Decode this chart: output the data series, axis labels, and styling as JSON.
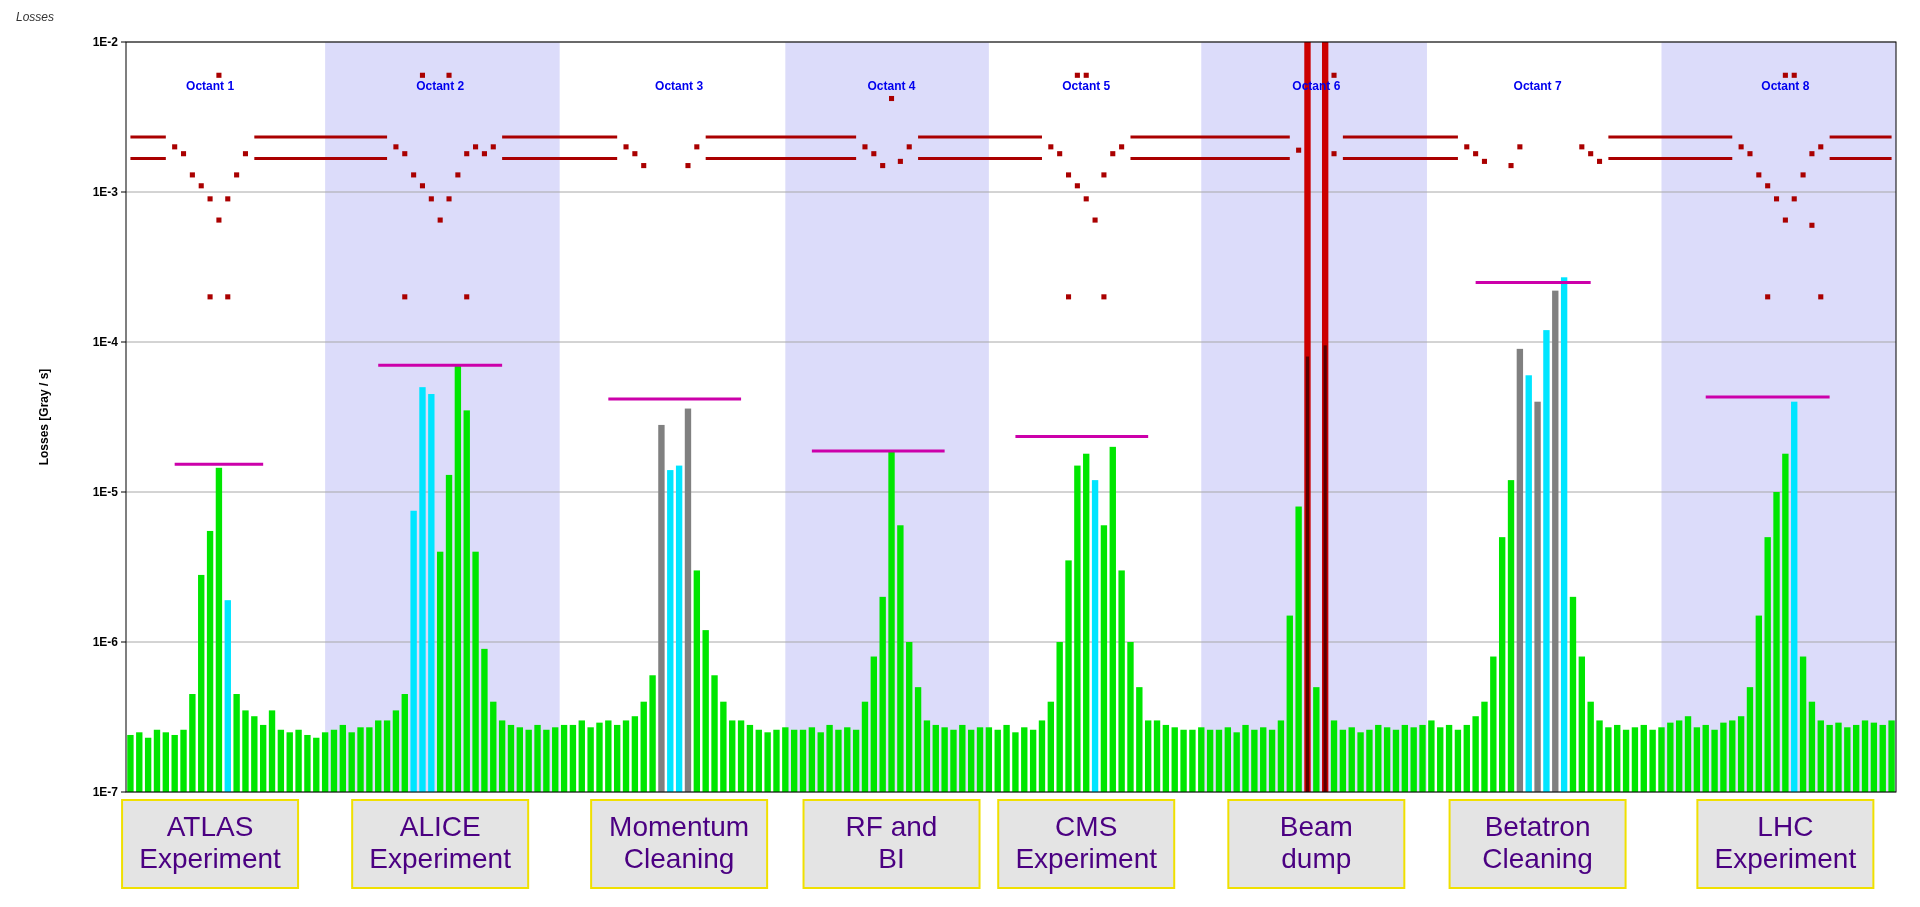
{
  "chart_data": {
    "type": "bar",
    "title": "Losses",
    "ylabel": "Losses [Gray / s]",
    "log": "y",
    "grid": "y",
    "line_style": "solid",
    "ylim": [
      1e-07,
      0.01
    ],
    "yticks": [
      {
        "value": 1e-07,
        "label": "1E-7"
      },
      {
        "value": 1e-06,
        "label": "1E-6"
      },
      {
        "value": 1e-05,
        "label": "1E-5"
      },
      {
        "value": 0.0001,
        "label": "1E-4"
      },
      {
        "value": 0.001,
        "label": "1E-3"
      },
      {
        "value": 0.01,
        "label": "1E-2"
      }
    ],
    "categories": [
      null,
      null,
      null,
      null,
      null,
      null,
      null,
      null,
      null,
      "Octant 1",
      null,
      null,
      null,
      null,
      null,
      null,
      null,
      null,
      null,
      null,
      null,
      null,
      null,
      null,
      null,
      null,
      null,
      null,
      null,
      null,
      null,
      null,
      null,
      null,
      null,
      "Octant 2",
      null,
      null,
      null,
      null,
      null,
      null,
      null,
      null,
      null,
      null,
      null,
      null,
      null,
      null,
      null,
      null,
      null,
      null,
      null,
      null,
      null,
      null,
      null,
      null,
      null,
      null,
      "Octant 3",
      null,
      null,
      null,
      null,
      null,
      null,
      null,
      null,
      null,
      null,
      null,
      null,
      null,
      null,
      null,
      null,
      null,
      null,
      null,
      null,
      null,
      null,
      null,
      "Octant 4",
      null,
      null,
      null,
      null,
      null,
      null,
      null,
      null,
      null,
      null,
      null,
      null,
      null,
      null,
      null,
      null,
      null,
      null,
      null,
      null,
      null,
      "Octant 5",
      null,
      null,
      null,
      null,
      null,
      null,
      null,
      null,
      null,
      null,
      null,
      null,
      null,
      null,
      null,
      null,
      null,
      null,
      null,
      null,
      null,
      null,
      null,
      null,
      null,
      "Octant 6",
      null,
      null,
      null,
      null,
      null,
      null,
      null,
      null,
      null,
      null,
      null,
      null,
      null,
      null,
      null,
      null,
      null,
      null,
      null,
      null,
      null,
      null,
      null,
      null,
      "Octant 7",
      null,
      null,
      null,
      null,
      null,
      null,
      null,
      null,
      null,
      null,
      null,
      null,
      null,
      null,
      null,
      null,
      null,
      null,
      null,
      null,
      null,
      null,
      null,
      null,
      null,
      null,
      null,
      "Octant 8",
      null,
      null,
      null,
      null,
      null,
      null,
      null,
      null,
      null,
      null,
      null,
      null
    ],
    "series": [
      {
        "color": "#00e600",
        "values": [
          2.4e-07,
          2.5e-07,
          2.3e-07,
          2.6e-07,
          2.5e-07,
          2.4e-07,
          2.6e-07,
          4.5e-07,
          2.8e-06,
          5.5e-06,
          1.45e-05,
          null,
          4.5e-07,
          3.5e-07,
          3.2e-07,
          2.8e-07,
          3.5e-07,
          2.6e-07,
          2.5e-07,
          2.6e-07,
          2.4e-07,
          2.3e-07,
          2.5e-07,
          2.6e-07,
          2.8e-07,
          2.5e-07,
          2.7e-07,
          2.7e-07,
          3e-07,
          3e-07,
          3.5e-07,
          4.5e-07,
          null,
          null,
          null,
          4e-06,
          1.3e-05,
          7e-05,
          3.5e-05,
          4e-06,
          9e-07,
          4e-07,
          3e-07,
          2.8e-07,
          2.7e-07,
          2.6e-07,
          2.8e-07,
          2.6e-07,
          2.7e-07,
          2.8e-07,
          2.8e-07,
          3e-07,
          2.7e-07,
          2.9e-07,
          3e-07,
          2.8e-07,
          3e-07,
          3.2e-07,
          4e-07,
          6e-07,
          null,
          null,
          null,
          null,
          3e-06,
          1.2e-06,
          6e-07,
          4e-07,
          3e-07,
          3e-07,
          2.8e-07,
          2.6e-07,
          2.5e-07,
          2.6e-07,
          2.7e-07,
          2.6e-07,
          2.6e-07,
          2.7e-07,
          2.5e-07,
          2.8e-07,
          2.6e-07,
          2.7e-07,
          2.6e-07,
          4e-07,
          8e-07,
          2e-06,
          1.9e-05,
          6e-06,
          1e-06,
          5e-07,
          3e-07,
          2.8e-07,
          2.7e-07,
          2.6e-07,
          2.8e-07,
          2.6e-07,
          2.7e-07,
          2.7e-07,
          2.6e-07,
          2.8e-07,
          2.5e-07,
          2.7e-07,
          2.6e-07,
          3e-07,
          4e-07,
          1e-06,
          3.5e-06,
          1.5e-05,
          1.8e-05,
          null,
          6e-06,
          2e-05,
          3e-06,
          1e-06,
          5e-07,
          3e-07,
          3e-07,
          2.8e-07,
          2.7e-07,
          2.6e-07,
          2.6e-07,
          2.7e-07,
          2.6e-07,
          2.6e-07,
          2.7e-07,
          2.5e-07,
          2.8e-07,
          2.6e-07,
          2.7e-07,
          2.6e-07,
          3e-07,
          1.5e-06,
          8e-06,
          null,
          5e-07,
          null,
          3e-07,
          2.6e-07,
          2.7e-07,
          2.5e-07,
          2.6e-07,
          2.8e-07,
          2.7e-07,
          2.6e-07,
          2.8e-07,
          2.7e-07,
          2.8e-07,
          3e-07,
          2.7e-07,
          2.8e-07,
          2.6e-07,
          2.8e-07,
          3.2e-07,
          4e-07,
          8e-07,
          5e-06,
          1.2e-05,
          null,
          null,
          null,
          null,
          null,
          null,
          2e-06,
          8e-07,
          4e-07,
          3e-07,
          2.7e-07,
          2.8e-07,
          2.6e-07,
          2.7e-07,
          2.8e-07,
          2.6e-07,
          2.7e-07,
          2.9e-07,
          3e-07,
          3.2e-07,
          2.7e-07,
          2.8e-07,
          2.6e-07,
          2.9e-07,
          3e-07,
          3.2e-07,
          5e-07,
          1.5e-06,
          5e-06,
          1e-05,
          1.8e-05,
          null,
          8e-07,
          4e-07,
          3e-07,
          2.8e-07,
          2.9e-07,
          2.7e-07,
          2.8e-07,
          3e-07,
          2.9e-07,
          2.8e-07,
          3e-07
        ]
      },
      {
        "type": "bar",
        "color": "#00e5ff",
        "values": [
          null,
          null,
          null,
          null,
          null,
          null,
          null,
          null,
          null,
          null,
          null,
          1.9e-06,
          null,
          null,
          null,
          null,
          null,
          null,
          null,
          null,
          null,
          null,
          null,
          null,
          null,
          null,
          null,
          null,
          null,
          null,
          null,
          null,
          7.5e-06,
          5e-05,
          4.5e-05,
          null,
          null,
          null,
          null,
          null,
          null,
          null,
          null,
          null,
          null,
          null,
          null,
          null,
          null,
          null,
          null,
          null,
          null,
          null,
          null,
          null,
          null,
          null,
          null,
          null,
          null,
          1.4e-05,
          1.5e-05,
          null,
          null,
          null,
          null,
          null,
          null,
          null,
          null,
          null,
          null,
          null,
          null,
          null,
          null,
          null,
          null,
          null,
          null,
          null,
          null,
          null,
          null,
          null,
          null,
          null,
          null,
          null,
          null,
          null,
          null,
          null,
          null,
          null,
          null,
          null,
          null,
          null,
          null,
          null,
          null,
          null,
          null,
          null,
          null,
          null,
          null,
          1.2e-05,
          null,
          null,
          null,
          null,
          null,
          null,
          null,
          null,
          null,
          null,
          null,
          null,
          null,
          null,
          null,
          null,
          null,
          null,
          null,
          null,
          null,
          null,
          null,
          null,
          null,
          null,
          null,
          null,
          null,
          null,
          null,
          null,
          null,
          null,
          null,
          null,
          null,
          null,
          null,
          null,
          null,
          null,
          null,
          null,
          null,
          null,
          null,
          null,
          6e-05,
          null,
          0.00012,
          null,
          0.00027,
          null,
          null,
          null,
          null,
          null,
          null,
          null,
          null,
          null,
          null,
          null,
          null,
          null,
          null,
          null,
          null,
          null,
          null,
          null,
          null,
          null,
          null,
          null,
          null,
          null,
          4e-05,
          null,
          null,
          null,
          null,
          null,
          null,
          null,
          null,
          null,
          null,
          null
        ]
      },
      {
        "type": "bar",
        "color": "#808080",
        "values": [
          null,
          null,
          null,
          null,
          null,
          null,
          null,
          null,
          null,
          null,
          null,
          null,
          null,
          null,
          null,
          null,
          null,
          null,
          null,
          null,
          null,
          null,
          null,
          null,
          null,
          null,
          null,
          null,
          null,
          null,
          null,
          null,
          null,
          null,
          null,
          null,
          null,
          null,
          null,
          null,
          null,
          null,
          null,
          null,
          null,
          null,
          null,
          null,
          null,
          null,
          null,
          null,
          null,
          null,
          null,
          null,
          null,
          null,
          null,
          null,
          2.8e-05,
          null,
          null,
          3.6e-05,
          null,
          null,
          null,
          null,
          null,
          null,
          null,
          null,
          null,
          null,
          null,
          null,
          null,
          null,
          null,
          null,
          null,
          null,
          null,
          null,
          null,
          null,
          null,
          null,
          null,
          null,
          null,
          null,
          null,
          null,
          null,
          null,
          null,
          null,
          null,
          null,
          null,
          null,
          null,
          null,
          null,
          null,
          null,
          null,
          null,
          null,
          null,
          null,
          null,
          null,
          null,
          null,
          null,
          null,
          null,
          null,
          null,
          null,
          null,
          null,
          null,
          null,
          null,
          null,
          null,
          null,
          null,
          null,
          null,
          null,
          null,
          null,
          null,
          null,
          null,
          null,
          null,
          null,
          null,
          null,
          null,
          null,
          null,
          null,
          null,
          null,
          null,
          null,
          null,
          null,
          null,
          null,
          null,
          9e-05,
          null,
          4e-05,
          null,
          0.00022,
          null,
          null,
          null,
          null,
          null,
          null,
          null,
          null,
          null,
          null,
          null,
          null,
          null,
          null,
          null,
          null,
          null,
          null,
          null,
          null,
          null,
          null,
          null,
          null,
          null,
          null,
          null,
          null,
          null,
          null,
          null,
          null,
          null,
          null,
          null,
          null,
          null,
          null
        ]
      },
      {
        "type": "bar",
        "color": "#cc0000",
        "values": [
          null,
          null,
          null,
          null,
          null,
          null,
          null,
          null,
          null,
          null,
          null,
          null,
          null,
          null,
          null,
          null,
          null,
          null,
          null,
          null,
          null,
          null,
          null,
          null,
          null,
          null,
          null,
          null,
          null,
          null,
          null,
          null,
          null,
          null,
          null,
          null,
          null,
          null,
          null,
          null,
          null,
          null,
          null,
          null,
          null,
          null,
          null,
          null,
          null,
          null,
          null,
          null,
          null,
          null,
          null,
          null,
          null,
          null,
          null,
          null,
          null,
          null,
          null,
          null,
          null,
          null,
          null,
          null,
          null,
          null,
          null,
          null,
          null,
          null,
          null,
          null,
          null,
          null,
          null,
          null,
          null,
          null,
          null,
          null,
          null,
          null,
          null,
          null,
          null,
          null,
          null,
          null,
          null,
          null,
          null,
          null,
          null,
          null,
          null,
          null,
          null,
          null,
          null,
          null,
          null,
          null,
          null,
          null,
          null,
          null,
          null,
          null,
          null,
          null,
          null,
          null,
          null,
          null,
          null,
          null,
          null,
          null,
          null,
          null,
          null,
          null,
          null,
          null,
          null,
          null,
          null,
          null,
          null,
          0.01,
          null,
          0.01,
          null,
          null,
          null,
          null,
          null,
          null,
          null,
          null,
          null,
          null,
          null,
          null,
          null,
          null,
          null,
          null,
          null,
          null,
          null,
          null,
          null,
          null,
          null,
          null,
          null,
          null,
          null,
          null,
          null,
          null,
          null,
          null,
          null,
          null,
          null,
          null,
          null,
          null,
          null,
          null,
          null,
          null,
          null,
          null,
          null,
          null,
          null,
          null,
          null,
          null,
          null,
          null,
          null,
          null,
          null,
          null,
          null,
          null,
          null,
          null,
          null,
          null,
          null,
          null
        ]
      },
      {
        "type": "bar",
        "color": "#5a0000",
        "values": [
          null,
          null,
          null,
          null,
          null,
          null,
          null,
          null,
          null,
          null,
          null,
          null,
          null,
          null,
          null,
          null,
          null,
          null,
          null,
          null,
          null,
          null,
          null,
          null,
          null,
          null,
          null,
          null,
          null,
          null,
          null,
          null,
          null,
          null,
          null,
          null,
          null,
          null,
          null,
          null,
          null,
          null,
          null,
          null,
          null,
          null,
          null,
          null,
          null,
          null,
          null,
          null,
          null,
          null,
          null,
          null,
          null,
          null,
          null,
          null,
          null,
          null,
          null,
          null,
          null,
          null,
          null,
          null,
          null,
          null,
          null,
          null,
          null,
          null,
          null,
          null,
          null,
          null,
          null,
          null,
          null,
          null,
          null,
          null,
          null,
          null,
          null,
          null,
          null,
          null,
          null,
          null,
          null,
          null,
          null,
          null,
          null,
          null,
          null,
          null,
          null,
          null,
          null,
          null,
          null,
          null,
          null,
          null,
          null,
          null,
          null,
          null,
          null,
          null,
          null,
          null,
          null,
          null,
          null,
          null,
          null,
          null,
          null,
          null,
          null,
          null,
          null,
          null,
          null,
          null,
          null,
          null,
          null,
          8e-05,
          null,
          9.5e-05,
          null,
          null,
          null,
          null,
          null,
          null,
          null,
          null,
          null,
          null,
          null,
          null,
          null,
          null,
          null,
          null,
          null,
          null,
          null,
          null,
          null,
          null,
          null,
          null,
          null,
          null,
          null,
          null,
          null,
          null,
          null,
          null,
          null,
          null,
          null,
          null,
          null,
          null,
          null,
          null,
          null,
          null,
          null,
          null,
          null,
          null,
          null,
          null,
          null,
          null,
          null,
          null,
          null,
          null,
          null,
          null,
          null,
          null,
          null,
          null,
          null,
          null,
          null,
          null
        ]
      },
      {
        "type": "line",
        "color": "#aa0000",
        "values": [
          0.00233,
          0.00233,
          0.00233,
          0.00233,
          0.00233,
          null,
          null,
          null,
          null,
          null,
          null,
          null,
          null,
          null,
          0.00233,
          0.00233,
          0.00233,
          0.00233,
          0.00233,
          0.00233,
          0.00233,
          0.00233,
          0.00233,
          0.00233,
          0.00233,
          0.00233,
          0.00233,
          0.00233,
          0.00233,
          0.00233,
          null,
          null,
          null,
          null,
          null,
          null,
          null,
          null,
          null,
          null,
          null,
          null,
          0.00233,
          0.00233,
          0.00233,
          0.00233,
          0.00233,
          0.00233,
          0.00233,
          0.00233,
          0.00233,
          0.00233,
          0.00233,
          0.00233,
          0.00233,
          0.00233,
          null,
          null,
          null,
          null,
          null,
          null,
          null,
          null,
          null,
          0.00233,
          0.00233,
          0.00233,
          0.00233,
          0.00233,
          0.00233,
          0.00233,
          0.00233,
          0.00233,
          0.00233,
          0.00233,
          0.00233,
          0.00233,
          0.00233,
          0.00233,
          0.00233,
          0.00233,
          0.00233,
          null,
          null,
          null,
          null,
          null,
          null,
          0.00233,
          0.00233,
          0.00233,
          0.00233,
          0.00233,
          0.00233,
          0.00233,
          0.00233,
          0.00233,
          0.00233,
          0.00233,
          0.00233,
          0.00233,
          0.00233,
          0.00233,
          null,
          null,
          null,
          null,
          null,
          null,
          null,
          null,
          null,
          0.00233,
          0.00233,
          0.00233,
          0.00233,
          0.00233,
          0.00233,
          0.00233,
          0.00233,
          0.00233,
          0.00233,
          0.00233,
          0.00233,
          0.00233,
          0.00233,
          0.00233,
          0.00233,
          0.00233,
          0.00233,
          0.00233,
          null,
          null,
          null,
          null,
          null,
          0.00233,
          0.00233,
          0.00233,
          0.00233,
          0.00233,
          0.00233,
          0.00233,
          0.00233,
          0.00233,
          0.00233,
          0.00233,
          0.00233,
          0.00233,
          0.00233,
          null,
          null,
          null,
          null,
          null,
          null,
          null,
          null,
          null,
          null,
          null,
          null,
          null,
          null,
          null,
          null,
          0.00233,
          0.00233,
          0.00233,
          0.00233,
          0.00233,
          0.00233,
          0.00233,
          0.00233,
          0.00233,
          0.00233,
          0.00233,
          0.00233,
          0.00233,
          0.00233,
          0.00233,
          null,
          null,
          null,
          null,
          null,
          null,
          null,
          null,
          null,
          null,
          0.00233,
          0.00233,
          0.00233,
          0.00233,
          0.00233,
          0.00233,
          0.00233,
          0.00233
        ]
      },
      {
        "type": "line",
        "color": "#aa0000",
        "values": [
          0.00167,
          0.00167,
          0.00167,
          0.00167,
          0.00167,
          null,
          null,
          null,
          null,
          null,
          null,
          null,
          null,
          null,
          0.00167,
          0.00167,
          0.00167,
          0.00167,
          0.00167,
          0.00167,
          0.00167,
          0.00167,
          0.00167,
          0.00167,
          0.00167,
          0.00167,
          0.00167,
          0.00167,
          0.00167,
          0.00167,
          null,
          null,
          null,
          null,
          null,
          null,
          null,
          null,
          null,
          null,
          null,
          null,
          0.00167,
          0.00167,
          0.00167,
          0.00167,
          0.00167,
          0.00167,
          0.00167,
          0.00167,
          0.00167,
          0.00167,
          0.00167,
          0.00167,
          0.00167,
          0.00167,
          null,
          null,
          null,
          null,
          null,
          null,
          null,
          null,
          null,
          0.00167,
          0.00167,
          0.00167,
          0.00167,
          0.00167,
          0.00167,
          0.00167,
          0.00167,
          0.00167,
          0.00167,
          0.00167,
          0.00167,
          0.00167,
          0.00167,
          0.00167,
          0.00167,
          0.00167,
          0.00167,
          null,
          null,
          null,
          null,
          null,
          null,
          0.00167,
          0.00167,
          0.00167,
          0.00167,
          0.00167,
          0.00167,
          0.00167,
          0.00167,
          0.00167,
          0.00167,
          0.00167,
          0.00167,
          0.00167,
          0.00167,
          0.00167,
          null,
          null,
          null,
          null,
          null,
          null,
          null,
          null,
          null,
          0.00167,
          0.00167,
          0.00167,
          0.00167,
          0.00167,
          0.00167,
          0.00167,
          0.00167,
          0.00167,
          0.00167,
          0.00167,
          0.00167,
          0.00167,
          0.00167,
          0.00167,
          0.00167,
          0.00167,
          0.00167,
          0.00167,
          null,
          null,
          null,
          null,
          null,
          0.00167,
          0.00167,
          0.00167,
          0.00167,
          0.00167,
          0.00167,
          0.00167,
          0.00167,
          0.00167,
          0.00167,
          0.00167,
          0.00167,
          0.00167,
          0.00167,
          null,
          null,
          null,
          null,
          null,
          null,
          null,
          null,
          null,
          null,
          null,
          null,
          null,
          null,
          null,
          null,
          0.00167,
          0.00167,
          0.00167,
          0.00167,
          0.00167,
          0.00167,
          0.00167,
          0.00167,
          0.00167,
          0.00167,
          0.00167,
          0.00167,
          0.00167,
          0.00167,
          0.00167,
          null,
          null,
          null,
          null,
          null,
          null,
          null,
          null,
          null,
          null,
          0.00167,
          0.00167,
          0.00167,
          0.00167,
          0.00167,
          0.00167,
          0.00167,
          0.00167
        ]
      },
      {
        "type": "scatter",
        "marker": "square",
        "color": "#aa0000",
        "values": [
          null,
          null,
          null,
          null,
          null,
          0.002,
          0.0018,
          0.0013,
          0.0011,
          0.0009,
          0.00065,
          0.0009,
          0.0013,
          0.0018,
          null,
          null,
          null,
          null,
          null,
          null,
          null,
          null,
          null,
          null,
          null,
          null,
          null,
          null,
          null,
          null,
          0.002,
          0.0018,
          0.0013,
          0.0011,
          0.0009,
          0.00065,
          0.0009,
          0.0013,
          0.0018,
          0.002,
          0.0018,
          0.002,
          null,
          null,
          null,
          null,
          null,
          null,
          null,
          null,
          null,
          null,
          null,
          null,
          null,
          null,
          0.002,
          0.0018,
          0.0015,
          null,
          null,
          null,
          null,
          0.0015,
          0.002,
          null,
          null,
          null,
          null,
          null,
          null,
          null,
          null,
          null,
          null,
          null,
          null,
          null,
          null,
          null,
          null,
          null,
          null,
          0.002,
          0.0018,
          0.0015,
          null,
          0.0016,
          0.002,
          null,
          null,
          null,
          null,
          null,
          null,
          null,
          null,
          null,
          null,
          null,
          null,
          null,
          null,
          null,
          0.002,
          0.0018,
          0.0013,
          0.0011,
          0.0009,
          0.00065,
          0.0013,
          0.0018,
          0.002,
          null,
          null,
          null,
          null,
          null,
          null,
          null,
          null,
          null,
          null,
          null,
          null,
          null,
          null,
          null,
          null,
          null,
          null,
          null,
          0.0019,
          null,
          null,
          null,
          0.0018,
          null,
          null,
          null,
          null,
          null,
          null,
          null,
          null,
          null,
          null,
          null,
          null,
          null,
          null,
          0.002,
          0.0018,
          0.0016,
          null,
          null,
          0.0015,
          0.002,
          null,
          null,
          null,
          null,
          null,
          null,
          0.002,
          0.0018,
          0.0016,
          null,
          null,
          null,
          null,
          null,
          null,
          null,
          null,
          null,
          null,
          null,
          null,
          null,
          null,
          null,
          0.002,
          0.0018,
          0.0013,
          0.0011,
          0.0009,
          0.00065,
          0.0009,
          0.0013,
          0.0018,
          0.002,
          null,
          null,
          null,
          null,
          null,
          null,
          null,
          null
        ]
      },
      {
        "type": "scatter",
        "marker": "square",
        "color": "#aa0000",
        "values": [
          null,
          null,
          null,
          null,
          null,
          null,
          null,
          null,
          null,
          0.0002,
          0.006,
          0.0002,
          null,
          null,
          null,
          null,
          null,
          null,
          null,
          null,
          null,
          null,
          null,
          null,
          null,
          null,
          null,
          null,
          null,
          null,
          null,
          0.0002,
          null,
          0.006,
          null,
          null,
          0.006,
          null,
          0.0002,
          null,
          null,
          null,
          null,
          null,
          null,
          null,
          null,
          null,
          null,
          null,
          null,
          null,
          null,
          null,
          null,
          null,
          null,
          null,
          null,
          null,
          null,
          null,
          null,
          null,
          null,
          null,
          null,
          null,
          null,
          null,
          null,
          null,
          null,
          null,
          null,
          null,
          null,
          null,
          null,
          null,
          null,
          null,
          null,
          null,
          null,
          null,
          0.0042,
          null,
          null,
          null,
          null,
          null,
          null,
          null,
          null,
          null,
          null,
          null,
          null,
          null,
          null,
          null,
          null,
          null,
          null,
          null,
          0.0002,
          0.006,
          0.006,
          null,
          0.0002,
          null,
          null,
          null,
          null,
          null,
          null,
          null,
          null,
          null,
          null,
          null,
          null,
          null,
          null,
          null,
          null,
          null,
          null,
          null,
          null,
          null,
          null,
          null,
          null,
          null,
          0.006,
          null,
          null,
          null,
          null,
          null,
          null,
          null,
          null,
          null,
          null,
          null,
          null,
          null,
          null,
          null,
          null,
          null,
          null,
          null,
          null,
          null,
          null,
          null,
          null,
          null,
          null,
          null,
          null,
          null,
          null,
          null,
          null,
          null,
          null,
          null,
          null,
          null,
          null,
          null,
          null,
          null,
          null,
          null,
          null,
          null,
          null,
          null,
          null,
          0.0002,
          null,
          0.006,
          0.006,
          null,
          0.0006,
          0.0002,
          null,
          null,
          null,
          null,
          null,
          null,
          null,
          null
        ]
      },
      {
        "type": "line",
        "color": "#cc00aa",
        "values": [
          null,
          null,
          null,
          null,
          null,
          1.53e-05,
          1.53e-05,
          1.53e-05,
          1.53e-05,
          1.53e-05,
          1.53e-05,
          1.53e-05,
          1.53e-05,
          1.53e-05,
          1.53e-05,
          1.53e-05,
          null,
          null,
          null,
          null,
          null,
          null,
          null,
          null,
          null,
          null,
          null,
          null,
          7e-05,
          7e-05,
          7e-05,
          7e-05,
          7e-05,
          7e-05,
          7e-05,
          7e-05,
          7e-05,
          7e-05,
          7e-05,
          7e-05,
          7e-05,
          7e-05,
          7e-05,
          null,
          null,
          null,
          null,
          null,
          null,
          null,
          null,
          null,
          null,
          null,
          4.17e-05,
          4.17e-05,
          4.17e-05,
          4.17e-05,
          4.17e-05,
          4.17e-05,
          4.17e-05,
          4.17e-05,
          4.17e-05,
          4.17e-05,
          4.17e-05,
          4.17e-05,
          4.17e-05,
          4.17e-05,
          4.17e-05,
          4.17e-05,
          null,
          null,
          null,
          null,
          null,
          null,
          null,
          1.88e-05,
          1.88e-05,
          1.88e-05,
          1.88e-05,
          1.88e-05,
          1.88e-05,
          1.88e-05,
          1.88e-05,
          1.88e-05,
          1.88e-05,
          1.88e-05,
          1.88e-05,
          1.88e-05,
          1.88e-05,
          1.88e-05,
          1.88e-05,
          null,
          null,
          null,
          null,
          null,
          null,
          null,
          2.34e-05,
          2.34e-05,
          2.34e-05,
          2.34e-05,
          2.34e-05,
          2.34e-05,
          2.34e-05,
          2.34e-05,
          2.34e-05,
          2.34e-05,
          2.34e-05,
          2.34e-05,
          2.34e-05,
          2.34e-05,
          2.34e-05,
          2.34e-05,
          null,
          null,
          null,
          null,
          null,
          null,
          null,
          null,
          null,
          null,
          null,
          null,
          null,
          null,
          null,
          null,
          null,
          null,
          null,
          null,
          null,
          null,
          null,
          null,
          null,
          null,
          null,
          null,
          null,
          null,
          null,
          null,
          null,
          null,
          null,
          null,
          0.000249,
          0.000249,
          0.000249,
          0.000249,
          0.000249,
          0.000249,
          0.000249,
          0.000249,
          0.000249,
          0.000249,
          0.000249,
          0.000249,
          0.000249,
          0.000249,
          null,
          null,
          null,
          null,
          null,
          null,
          null,
          null,
          null,
          null,
          null,
          null,
          4.3e-05,
          4.3e-05,
          4.3e-05,
          4.3e-05,
          4.3e-05,
          4.3e-05,
          4.3e-05,
          4.3e-05,
          4.3e-05,
          4.3e-05,
          4.3e-05,
          4.3e-05,
          4.3e-05,
          4.3e-05,
          4.3e-05,
          null,
          null,
          null,
          null,
          null,
          null,
          null
        ]
      }
    ],
    "annotations": [
      "ATLAS Experiment",
      "ALICE Experiment",
      "Momentum Cleaning",
      "RF and BI",
      "CMS Experiment",
      "Beam dump",
      "Betatron Cleaning",
      "LHC Experiment"
    ]
  }
}
